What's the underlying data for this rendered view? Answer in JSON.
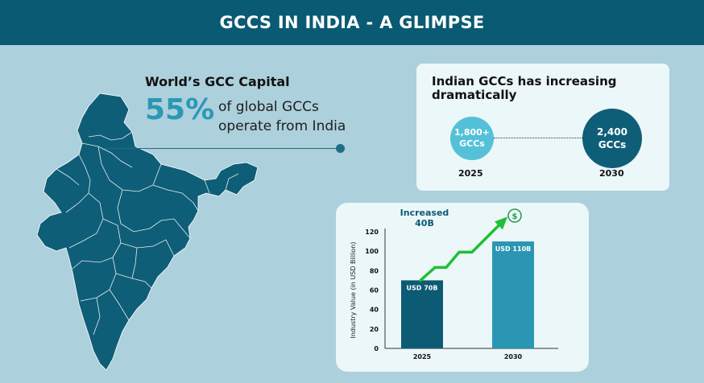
{
  "header": {
    "title": "GCCS IN INDIA - A GLIMPSE"
  },
  "capital": {
    "title": "World’s GCC Capital",
    "percent": "55%",
    "description": "of global GCCs operate from India"
  },
  "growth": {
    "title": "Indian GCCs has increasing dramatically",
    "from": {
      "count": "1,800+ GCCs",
      "year": "2025"
    },
    "to": {
      "count": "2,400 GCCs",
      "year": "2030"
    }
  },
  "colors": {
    "header": "#0a5a73",
    "background": "#acd0dc",
    "map": "#0f5e78",
    "accent": "#2b98b6",
    "bar_2025": "#0d5a74",
    "bar_2030": "#2a96b3",
    "arrow": "#1fbf35"
  },
  "icons": {
    "currency": "dollar-circle-icon",
    "trend": "trend-up-arrow-icon"
  },
  "chart_data": {
    "type": "bar",
    "annotation": "Increased 40B",
    "categories": [
      "2025",
      "2030"
    ],
    "values": [
      70,
      110
    ],
    "data_labels": [
      "USD 70B",
      "USD 110B"
    ],
    "ylabel": "Industry Value (in USD Billion)",
    "xlabel": "",
    "ylim": [
      0,
      120
    ],
    "yticks": [
      0,
      20,
      40,
      60,
      80,
      100,
      120
    ],
    "grid": false,
    "legend": "none"
  }
}
